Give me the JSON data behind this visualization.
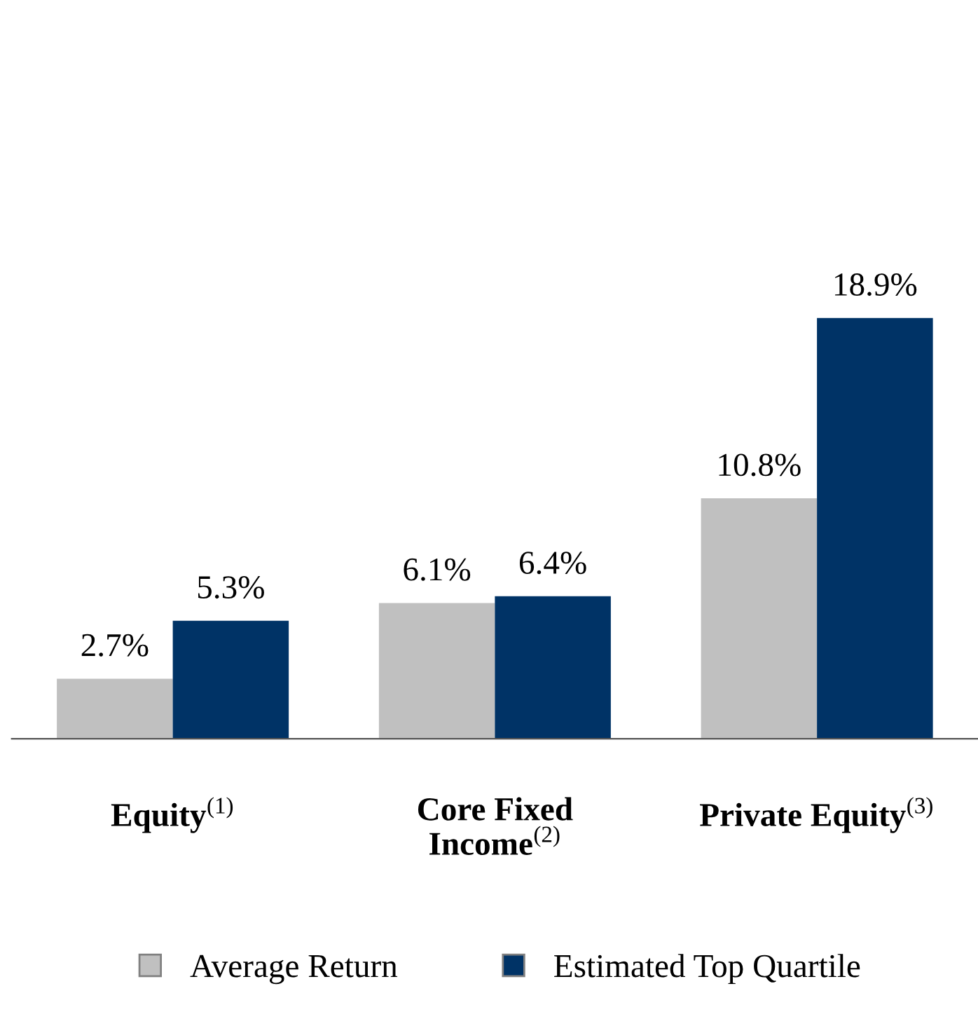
{
  "chart_data": {
    "type": "bar",
    "categories": [
      "Equity$^{(1)}$",
      "Core Fixed\nIncome$^{(2)}$",
      "Private Equity$^{(3)}$"
    ],
    "series": [
      {
        "name": "Average Return",
        "color": "#c0c0c0",
        "values": [
          2.7,
          6.1,
          10.8
        ],
        "value_labels": [
          "2.7%",
          "6.1%",
          "10.8%"
        ]
      },
      {
        "name": "Estimated Top Quartile",
        "color": "#003366",
        "values": [
          5.3,
          6.4,
          18.9
        ],
        "value_labels": [
          "5.3%",
          "6.4%",
          "18.9%"
        ]
      }
    ],
    "legend": "bottom",
    "grid": false
  }
}
